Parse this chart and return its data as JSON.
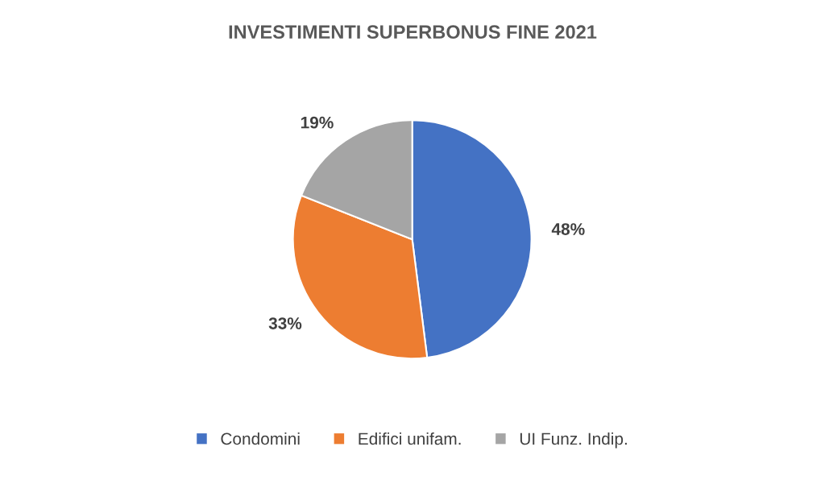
{
  "chart_data": {
    "type": "pie",
    "title": "INVESTIMENTI SUPERBONUS FINE 2021",
    "categories": [
      "Condomini",
      "Edifici unifam.",
      "UI Funz. Indip."
    ],
    "values": [
      48,
      33,
      19
    ],
    "colors": [
      "#4472c4",
      "#ed7d31",
      "#a5a5a5"
    ],
    "value_labels": [
      "48%",
      "33%",
      "19%"
    ],
    "legend": "bottom"
  }
}
